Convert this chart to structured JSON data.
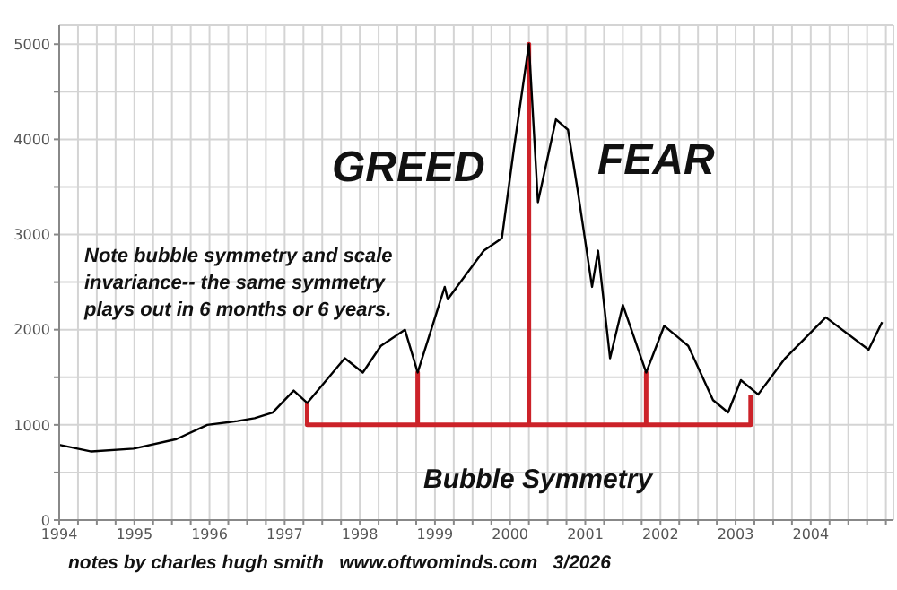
{
  "chart_data": {
    "type": "line",
    "xlim": [
      1994,
      2005.1
    ],
    "xticks": [
      1994,
      {
        "value": 1994.25,
        "label": null
      },
      {
        "value": 1994.5,
        "label": null
      },
      {
        "value": 1994.75,
        "label": null
      },
      1995,
      {
        "value": 1995.25,
        "label": null
      },
      {
        "value": 1995.5,
        "label": null
      },
      {
        "value": 1995.75,
        "label": null
      },
      1996,
      {
        "value": 1996.25,
        "label": null
      },
      {
        "value": 1996.5,
        "label": null
      },
      {
        "value": 1996.75,
        "label": null
      },
      1997,
      {
        "value": 1997.25,
        "label": null
      },
      {
        "value": 1997.5,
        "label": null
      },
      {
        "value": 1997.75,
        "label": null
      },
      1998,
      {
        "value": 1998.25,
        "label": null
      },
      {
        "value": 1998.5,
        "label": null
      },
      {
        "value": 1998.75,
        "label": null
      },
      1999,
      {
        "value": 1999.25,
        "label": null
      },
      {
        "value": 1999.5,
        "label": null
      },
      {
        "value": 1999.75,
        "label": null
      },
      2000,
      {
        "value": 2000.25,
        "label": null
      },
      {
        "value": 2000.5,
        "label": null
      },
      {
        "value": 2000.75,
        "label": null
      },
      2001,
      {
        "value": 2001.25,
        "label": null
      },
      {
        "value": 2001.5,
        "label": null
      },
      {
        "value": 2001.75,
        "label": null
      },
      2002,
      {
        "value": 2002.25,
        "label": null
      },
      {
        "value": 2002.5,
        "label": null
      },
      {
        "value": 2002.75,
        "label": null
      },
      2003,
      {
        "value": 2003.25,
        "label": null
      },
      {
        "value": 2003.5,
        "label": null
      },
      {
        "value": 2003.75,
        "label": null
      },
      2004,
      {
        "value": 2004.25,
        "label": null
      },
      {
        "value": 2004.5,
        "label": null
      },
      {
        "value": 2004.75,
        "label": null
      },
      {
        "value": 2005,
        "label": null
      }
    ],
    "ylim": [
      0,
      5200
    ],
    "yticks": [
      0,
      {
        "value": 500,
        "label": null
      },
      1000,
      {
        "value": 1500,
        "label": null
      },
      2000,
      {
        "value": 2500,
        "label": null
      },
      3000,
      {
        "value": 3500,
        "label": null
      },
      4000,
      {
        "value": 4500,
        "label": null
      },
      5000
    ],
    "grid": true,
    "series": [
      {
        "color": "#000000",
        "x": [
          1994.0,
          1994.43,
          1994.99,
          1995.56,
          1995.97,
          1996.37,
          1996.6,
          1996.84,
          1997.12,
          1997.3,
          1997.8,
          1998.04,
          1998.28,
          1998.6,
          1998.77,
          1999.13,
          1999.17,
          1999.65,
          1999.89,
          2000.05,
          2000.25,
          2000.37,
          2000.61,
          2000.77,
          2000.9,
          2001.09,
          2001.17,
          2001.33,
          2001.5,
          2001.81,
          2002.05,
          2002.37,
          2002.7,
          2002.9,
          2003.07,
          2003.3,
          2003.66,
          2004.2,
          2004.77,
          2004.95
        ],
        "values": [
          790,
          720,
          750,
          850,
          1000,
          1040,
          1070,
          1130,
          1360,
          1230,
          1700,
          1550,
          1830,
          2000,
          1550,
          2450,
          2320,
          2830,
          2960,
          3900,
          5000,
          3340,
          4210,
          4100,
          3460,
          2450,
          2830,
          1700,
          2260,
          1550,
          2040,
          1830,
          1260,
          1130,
          1470,
          1320,
          1700,
          2130,
          1790,
          2080
        ]
      },
      {
        "color": "#cc2229",
        "x": [
          1997.3,
          1997.3,
          1998.77,
          1998.77,
          1998.77,
          2000.25,
          2000.25,
          2000.25,
          2001.81,
          2001.81,
          2001.81,
          2003.2,
          2003.2
        ],
        "values": [
          1230,
          1000,
          1000,
          1550,
          1000,
          1000,
          5000,
          1000,
          1000,
          1550,
          1000,
          1000,
          1320
        ]
      }
    ],
    "line_style": "solid",
    "annotations": [
      "GREED",
      "FEAR",
      "Note bubble symmetry and scale invariance-- the same symmetry plays out in 6 months or 6 years.",
      "Bubble Symmetry",
      "notes by charles hugh smith   www.oftwominds.com   3/2026"
    ]
  }
}
